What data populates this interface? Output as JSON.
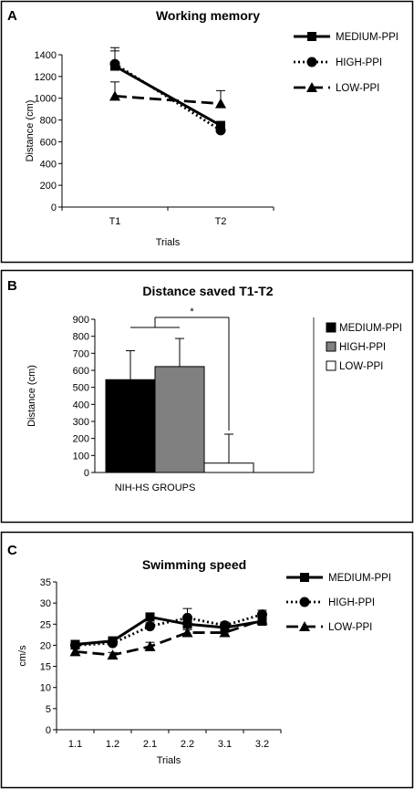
{
  "panels": {
    "a": {
      "letter": "A"
    },
    "b": {
      "letter": "B"
    },
    "c": {
      "letter": "C"
    }
  },
  "chart_data": [
    {
      "type": "line",
      "title": "Working memory",
      "xlabel": "Trials",
      "ylabel": "Distance (cm)",
      "categories": [
        "T1",
        "T2"
      ],
      "ylim": [
        0,
        1400
      ],
      "yticks": [
        0,
        200,
        400,
        600,
        800,
        1000,
        1200,
        1400
      ],
      "grid": false,
      "legend_position": "top-right",
      "series": [
        {
          "name": "MEDIUM-PPI",
          "values": [
            1295,
            750
          ],
          "err": [
            170,
            0
          ],
          "style": "solid",
          "marker": "square",
          "color": "#000000"
        },
        {
          "name": "HIGH-PPI",
          "values": [
            1315,
            705
          ],
          "err": [
            120,
            0
          ],
          "style": "dotted",
          "marker": "circle",
          "color": "#000000"
        },
        {
          "name": "LOW-PPI",
          "values": [
            1020,
            950
          ],
          "err": [
            130,
            120
          ],
          "style": "dashed",
          "marker": "triangle",
          "color": "#000000"
        }
      ]
    },
    {
      "type": "bar",
      "title": "Distance saved T1-T2",
      "xlabel": "NIH-HS GROUPS",
      "ylabel": "Distance (cm)",
      "ylim": [
        0,
        900
      ],
      "yticks": [
        0,
        100,
        200,
        300,
        400,
        500,
        600,
        700,
        800,
        900
      ],
      "grid": false,
      "legend_position": "right",
      "annotations": [
        "*"
      ],
      "series": [
        {
          "name": "MEDIUM-PPI",
          "value": 545,
          "err": 170,
          "color": "#000000"
        },
        {
          "name": "HIGH-PPI",
          "value": 622,
          "err": 165,
          "color": "#808080"
        },
        {
          "name": "LOW-PPI",
          "value": 55,
          "err": 170,
          "color": "#ffffff"
        }
      ]
    },
    {
      "type": "line",
      "title": "Swimming speed",
      "xlabel": "Trials",
      "ylabel": "cm/s",
      "categories": [
        "1.1",
        "1.2",
        "2.1",
        "2.2",
        "3.1",
        "3.2"
      ],
      "ylim": [
        0,
        35
      ],
      "yticks": [
        0,
        5,
        10,
        15,
        20,
        25,
        30,
        35
      ],
      "grid": false,
      "legend_position": "top-right",
      "series": [
        {
          "name": "MEDIUM-PPI",
          "values": [
            20.2,
            21.0,
            26.7,
            25.0,
            24.2,
            25.7
          ],
          "err": [
            0.7,
            1.0,
            0.8,
            1.0,
            0.8,
            0.8
          ],
          "style": "solid",
          "marker": "square",
          "color": "#000000"
        },
        {
          "name": "HIGH-PPI",
          "values": [
            20.0,
            20.5,
            24.5,
            26.5,
            24.7,
            27.3
          ],
          "err": [
            0.6,
            0.8,
            0.8,
            2.2,
            0.8,
            1.0
          ],
          "style": "dotted",
          "marker": "circle",
          "color": "#000000"
        },
        {
          "name": "LOW-PPI",
          "values": [
            18.5,
            17.7,
            19.7,
            23.0,
            23.0,
            26.0
          ],
          "err": [
            0.6,
            0.6,
            1.0,
            0.7,
            0.6,
            0.8
          ],
          "style": "dashed",
          "marker": "triangle",
          "color": "#000000"
        }
      ]
    }
  ]
}
